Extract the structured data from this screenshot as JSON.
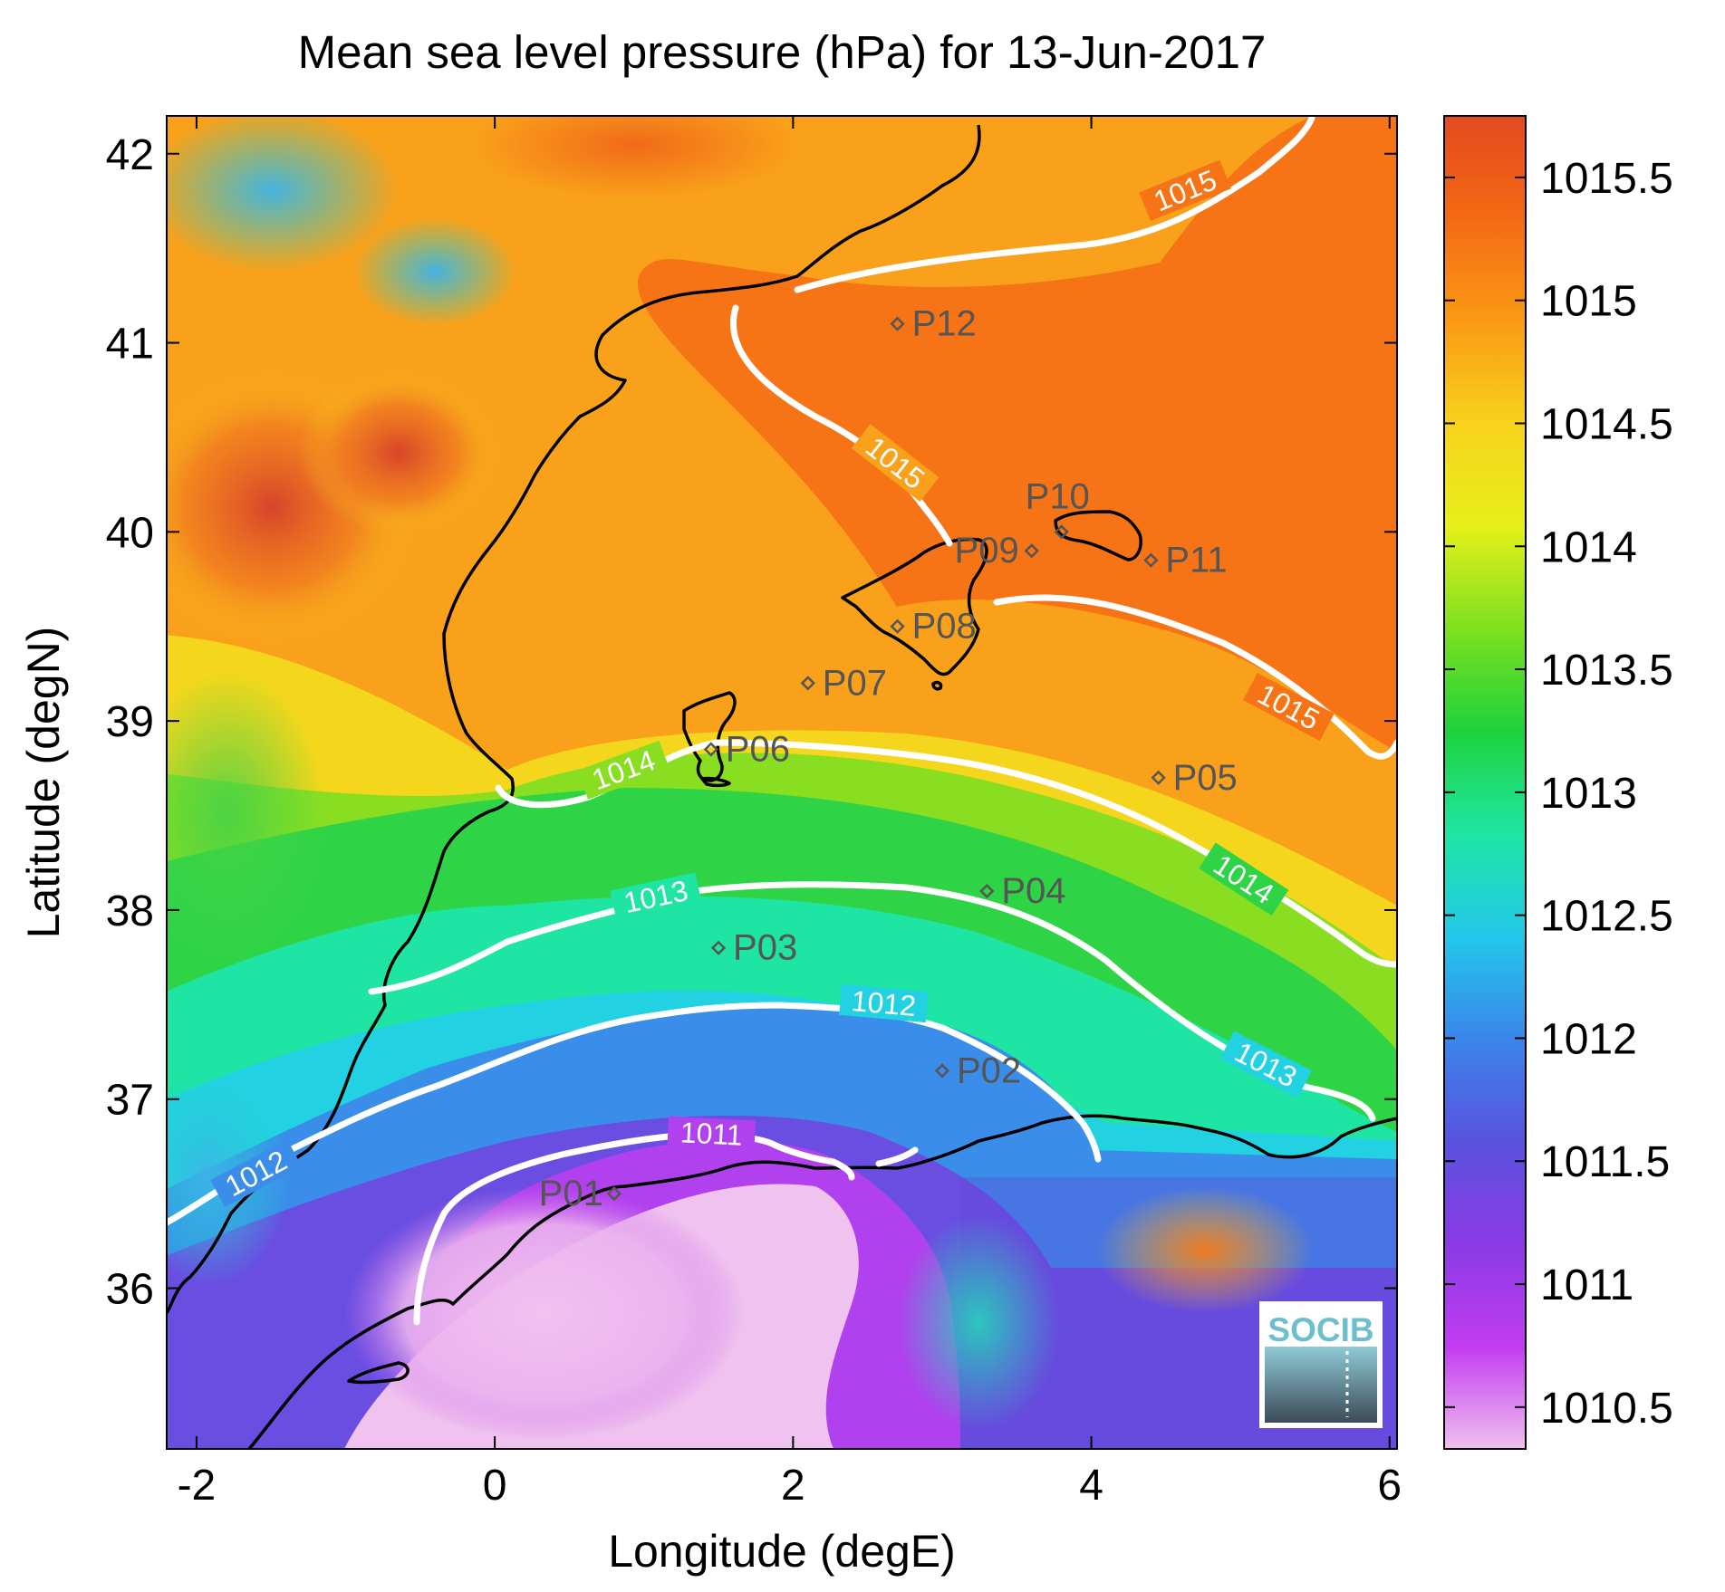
{
  "figure": {
    "title": "Mean sea level pressure (hPa) for 13-Jun-2017",
    "xlabel": "Longitude (degE)",
    "ylabel": "Latitude (degN)",
    "x_ticks": [
      "-2",
      "0",
      "2",
      "4",
      "6"
    ],
    "y_ticks": [
      "36",
      "37",
      "38",
      "39",
      "40",
      "41",
      "42"
    ],
    "logo_text": "SOCIB"
  },
  "chart_data": {
    "type": "heatmap",
    "title": "Mean sea level pressure (hPa) for 13-Jun-2017",
    "xlabel": "Longitude (degE)",
    "ylabel": "Latitude (degN)",
    "xlim": [
      -2.2,
      6.05
    ],
    "ylim": [
      35.15,
      42.2
    ],
    "colorbar": {
      "range": [
        1010.33,
        1015.75
      ],
      "ticks": [
        "1010.5",
        "1011",
        "1011.5",
        "1012",
        "1012.5",
        "1013",
        "1013.5",
        "1014",
        "1014.5",
        "1015",
        "1015.5"
      ],
      "colors": [
        "#f0c0ee",
        "#c23cf0",
        "#8a3ae6",
        "#5a52de",
        "#3a86ea",
        "#22c8ea",
        "#1ee6a4",
        "#1ed23c",
        "#7ee01e",
        "#e6f01a",
        "#f8d21c",
        "#fa9a14",
        "#f46a14",
        "#e24a20"
      ]
    },
    "contour_levels": [
      {
        "level": 1011,
        "label": "1011"
      },
      {
        "level": 1012,
        "label": "1012"
      },
      {
        "level": 1013,
        "label": "1013"
      },
      {
        "level": 1014,
        "label": "1014"
      },
      {
        "level": 1015,
        "label": "1015"
      }
    ],
    "stations": [
      {
        "name": "P01",
        "lon": 0.8,
        "lat": 36.5
      },
      {
        "name": "P02",
        "lon": 3.0,
        "lat": 37.15
      },
      {
        "name": "P03",
        "lon": 1.5,
        "lat": 37.8
      },
      {
        "name": "P04",
        "lon": 3.3,
        "lat": 38.1
      },
      {
        "name": "P05",
        "lon": 4.45,
        "lat": 38.7
      },
      {
        "name": "P06",
        "lon": 1.45,
        "lat": 38.85
      },
      {
        "name": "P07",
        "lon": 2.1,
        "lat": 39.2
      },
      {
        "name": "P08",
        "lon": 2.7,
        "lat": 39.5
      },
      {
        "name": "P09",
        "lon": 3.6,
        "lat": 39.9
      },
      {
        "name": "P10",
        "lon": 3.8,
        "lat": 40.0
      },
      {
        "name": "P11",
        "lon": 4.4,
        "lat": 39.85
      },
      {
        "name": "P12",
        "lon": 2.7,
        "lat": 41.1
      }
    ]
  }
}
